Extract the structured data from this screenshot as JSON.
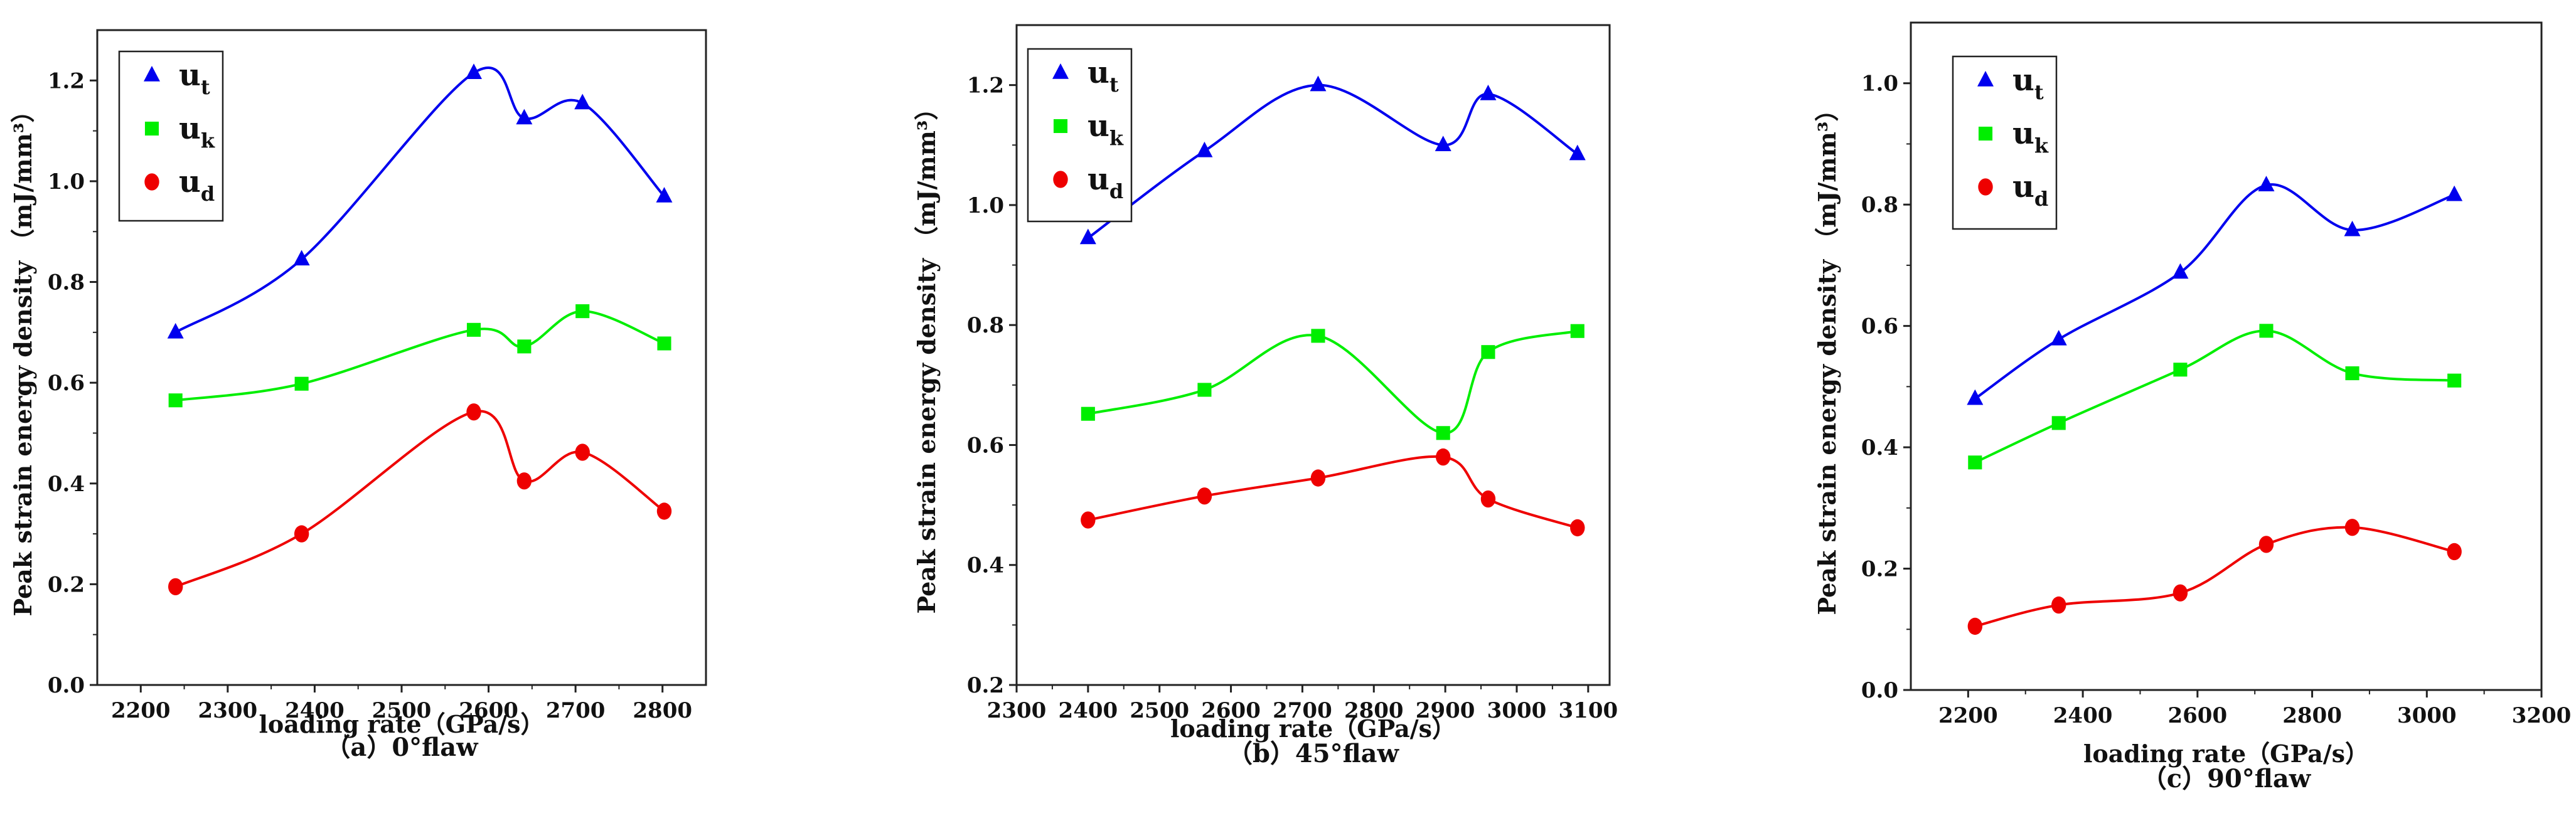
{
  "chart_data": [
    {
      "type": "scatter",
      "caption": "（a）0°flaw",
      "xlabel": "loading rate（GPa/s）",
      "ylabel": "Peak strain energy density （mJ/mm³）",
      "xlim": [
        2150,
        2850
      ],
      "ylim": [
        0,
        1.3
      ],
      "xticks": [
        2200,
        2300,
        2400,
        2500,
        2600,
        2700,
        2800
      ],
      "yticks": [
        0.0,
        0.2,
        0.4,
        0.6,
        0.8,
        1.0,
        1.2
      ],
      "legend_position": "top-left",
      "series": [
        {
          "name": "u",
          "sub": "t",
          "color": "#0000ee",
          "marker": "triangle",
          "x": [
            2240,
            2385,
            2583,
            2641,
            2708,
            2802
          ],
          "y": [
            0.7,
            0.845,
            1.215,
            1.125,
            1.155,
            0.97
          ]
        },
        {
          "name": "u",
          "sub": "k",
          "color": "#00ee00",
          "marker": "square",
          "x": [
            2240,
            2385,
            2583,
            2641,
            2708,
            2802
          ],
          "y": [
            0.565,
            0.598,
            0.705,
            0.672,
            0.742,
            0.678
          ]
        },
        {
          "name": "u",
          "sub": "d",
          "color": "#ee0000",
          "marker": "circle",
          "x": [
            2240,
            2385,
            2583,
            2641,
            2708,
            2802
          ],
          "y": [
            0.195,
            0.3,
            0.542,
            0.405,
            0.462,
            0.345
          ]
        }
      ]
    },
    {
      "type": "scatter",
      "caption": "（b）45°flaw",
      "xlabel": "loading rate（GPa/s）",
      "ylabel": "Peak strain energy density （mJ/mm³）",
      "xlim": [
        2300,
        3130
      ],
      "ylim": [
        0.2,
        1.3
      ],
      "xticks": [
        2300,
        2400,
        2500,
        2600,
        2700,
        2800,
        2900,
        3000,
        3100
      ],
      "yticks": [
        0.2,
        0.4,
        0.6,
        0.8,
        1.0,
        1.2
      ],
      "legend_position": "top-left",
      "series": [
        {
          "name": "u",
          "sub": "t",
          "color": "#0000ee",
          "marker": "triangle",
          "x": [
            2400,
            2563,
            2722,
            2897,
            2960,
            3085
          ],
          "y": [
            0.945,
            1.09,
            1.2,
            1.1,
            1.185,
            1.085
          ]
        },
        {
          "name": "u",
          "sub": "k",
          "color": "#00ee00",
          "marker": "square",
          "x": [
            2400,
            2563,
            2722,
            2897,
            2960,
            3085
          ],
          "y": [
            0.652,
            0.692,
            0.782,
            0.62,
            0.755,
            0.79
          ]
        },
        {
          "name": "u",
          "sub": "d",
          "color": "#ee0000",
          "marker": "circle",
          "x": [
            2400,
            2563,
            2722,
            2897,
            2960,
            3085
          ],
          "y": [
            0.475,
            0.515,
            0.545,
            0.58,
            0.51,
            0.462
          ]
        }
      ]
    },
    {
      "type": "scatter",
      "caption": "（c）90°flaw",
      "xlabel": "loading rate（GPa/s）",
      "ylabel": "Peak strain energy density （mJ/mm³）",
      "xlim": [
        2100,
        3200
      ],
      "ylim": [
        0,
        1.1
      ],
      "xticks": [
        2200,
        2400,
        2600,
        2800,
        3000,
        3200
      ],
      "yticks": [
        0.0,
        0.2,
        0.4,
        0.6,
        0.8,
        1.0
      ],
      "legend_position": "top-left",
      "series": [
        {
          "name": "u",
          "sub": "t",
          "color": "#0000ee",
          "marker": "triangle",
          "x": [
            2212,
            2358,
            2570,
            2720,
            2870,
            3048
          ],
          "y": [
            0.48,
            0.578,
            0.688,
            0.832,
            0.758,
            0.816
          ]
        },
        {
          "name": "u",
          "sub": "k",
          "color": "#00ee00",
          "marker": "square",
          "x": [
            2212,
            2358,
            2570,
            2720,
            2870,
            3048
          ],
          "y": [
            0.375,
            0.44,
            0.528,
            0.592,
            0.522,
            0.51
          ]
        },
        {
          "name": "u",
          "sub": "d",
          "color": "#ee0000",
          "marker": "circle",
          "x": [
            2212,
            2358,
            2570,
            2720,
            2870,
            3048
          ],
          "y": [
            0.105,
            0.14,
            0.16,
            0.24,
            0.268,
            0.228
          ]
        }
      ]
    }
  ]
}
